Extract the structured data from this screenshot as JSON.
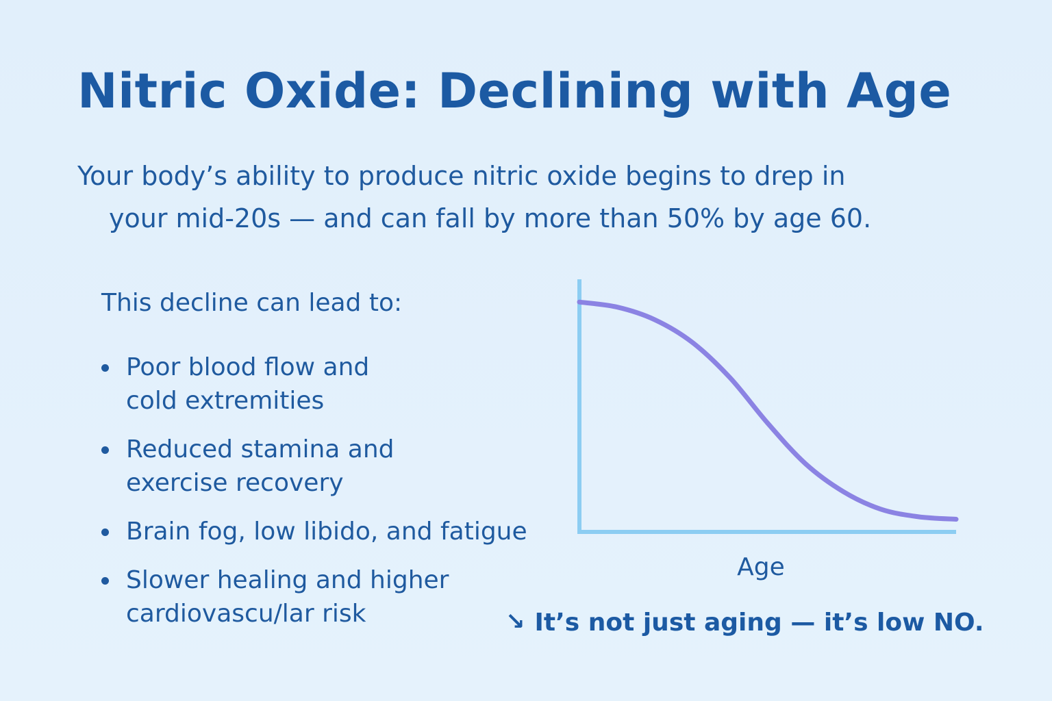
{
  "title": "Nitric Oxide: Declining with Age",
  "intro": {
    "line1": "Your body’s ability to produce nitric oxide begins to drep in",
    "line2": "your mid-20s — and can fall by more than 50% by age 60."
  },
  "list_heading": "This decline can lead to:",
  "bullets": [
    {
      "line1": "Poor blood flow and",
      "line2": "cold extremities"
    },
    {
      "line1": "Reduced stamina and",
      "line2": "exercise recovery"
    },
    {
      "line1": "Brain fog, low libido, and fatigue",
      "line2": ""
    },
    {
      "line1": "Slower healing and higher",
      "line2": "cardiovascu/lar risk"
    }
  ],
  "tagline": {
    "arrow_icon": "trend-down-arrow",
    "text": "It’s not just aging — it’s low NO."
  },
  "chart_data": {
    "type": "line",
    "title": "",
    "xlabel": "Age",
    "ylabel": "",
    "ticks_shown": false,
    "grid": false,
    "legend": "none",
    "xlim": [
      0,
      1
    ],
    "ylim": [
      0,
      1
    ],
    "series": [
      {
        "color": "#8b83e3",
        "x": [
          0.0,
          0.1,
          0.2,
          0.3,
          0.4,
          0.5,
          0.6,
          0.7,
          0.8,
          0.9,
          1.0
        ],
        "y": [
          0.91,
          0.89,
          0.84,
          0.75,
          0.61,
          0.43,
          0.27,
          0.16,
          0.09,
          0.06,
          0.05
        ]
      }
    ],
    "axis_color": "#8ccdf2"
  }
}
